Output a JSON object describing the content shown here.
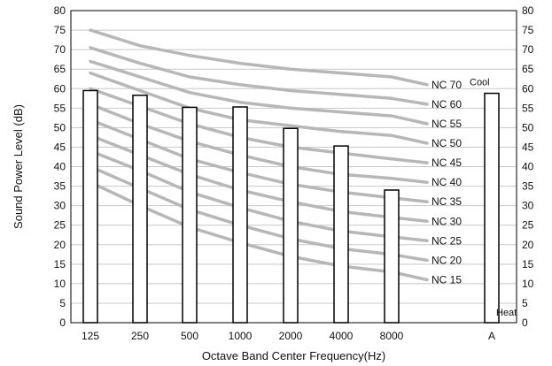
{
  "chart_data": {
    "type": "bar",
    "categories": [
      "125",
      "250",
      "500",
      "1000",
      "2000",
      "4000",
      "8000",
      "A"
    ],
    "values": [
      59.5,
      58.3,
      55.2,
      55.3,
      49.8,
      45.3,
      34.0,
      58.8
    ],
    "ylabel": "Sound Power Level (dB)",
    "xlabel": "Octave Band Center Frequency(Hz)",
    "ylim": [
      0,
      80
    ],
    "yticks": [
      "0",
      "5",
      "10",
      "15",
      "20",
      "25",
      "30",
      "35",
      "40",
      "45",
      "50",
      "55",
      "60",
      "65",
      "70",
      "75",
      "80"
    ],
    "grid": true,
    "bar_color": "#ffffff",
    "bar_edge_color": "#000000",
    "gridline_color": "#c8c8c8",
    "curve_color": "#b7b7b7",
    "nc_curves": [
      {
        "name": "NC 70",
        "values": [
          75.0,
          71.0,
          68.5,
          66.5,
          65.0,
          64.0,
          63.0,
          61.0
        ]
      },
      {
        "name": "NC 60",
        "values": [
          70.5,
          66.5,
          63.0,
          61.0,
          59.5,
          58.5,
          57.5,
          56.0
        ]
      },
      {
        "name": "NC 55",
        "values": [
          67.0,
          63.0,
          59.0,
          56.5,
          55.0,
          54.0,
          53.0,
          51.0
        ]
      },
      {
        "name": "NC 50",
        "values": [
          64.0,
          59.5,
          55.0,
          52.0,
          50.5,
          49.0,
          48.0,
          46.0
        ]
      },
      {
        "name": "NC 45",
        "values": [
          60.0,
          55.5,
          51.0,
          47.5,
          45.0,
          43.5,
          42.0,
          41.0
        ]
      },
      {
        "name": "NC 40",
        "values": [
          56.0,
          51.0,
          46.5,
          43.0,
          40.0,
          38.0,
          37.0,
          36.0
        ]
      },
      {
        "name": "NC 35",
        "values": [
          52.0,
          47.0,
          42.0,
          38.5,
          35.5,
          33.5,
          32.0,
          31.0
        ]
      },
      {
        "name": "NC 30",
        "values": [
          48.0,
          43.0,
          38.0,
          34.0,
          31.0,
          28.5,
          27.0,
          26.0
        ]
      },
      {
        "name": "NC 25",
        "values": [
          44.0,
          39.0,
          33.5,
          29.5,
          26.0,
          23.5,
          22.0,
          21.0
        ]
      },
      {
        "name": "NC 20",
        "values": [
          40.0,
          34.5,
          29.0,
          25.0,
          21.5,
          19.0,
          17.5,
          16.0
        ]
      },
      {
        "name": "NC 15",
        "values": [
          36.0,
          30.0,
          24.5,
          20.5,
          17.0,
          14.5,
          13.0,
          11.0
        ]
      }
    ],
    "annotations": {
      "cool": "Cool",
      "heat": "Heat"
    }
  }
}
